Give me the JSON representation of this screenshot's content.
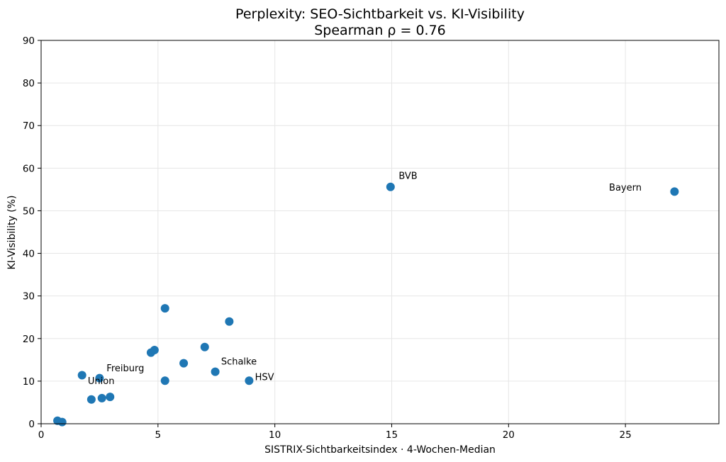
{
  "chart_data": {
    "type": "scatter",
    "title": "Perplexity: SEO-Sichtbarkeit vs. KI-Visibility",
    "subtitle": "Spearman ρ = 0.76",
    "xlabel": "SISTRIX-Sichtbarkeitsindex · 4-Wochen-Median",
    "ylabel": "KI-Visibility (%)",
    "xlim": [
      0,
      29
    ],
    "ylim": [
      0,
      90
    ],
    "xticks": [
      0,
      5,
      10,
      15,
      20,
      25
    ],
    "yticks": [
      0,
      10,
      20,
      30,
      40,
      50,
      60,
      70,
      80,
      90
    ],
    "grid": true,
    "marker_color": "#1f77b4",
    "points": [
      {
        "x": 0.7,
        "y": 0.7
      },
      {
        "x": 0.9,
        "y": 0.4
      },
      {
        "x": 1.75,
        "y": 11.4
      },
      {
        "x": 2.15,
        "y": 5.7
      },
      {
        "x": 2.5,
        "y": 10.7
      },
      {
        "x": 2.6,
        "y": 6.0
      },
      {
        "x": 2.95,
        "y": 6.3
      },
      {
        "x": 4.7,
        "y": 16.7
      },
      {
        "x": 4.85,
        "y": 17.3
      },
      {
        "x": 5.3,
        "y": 27.1
      },
      {
        "x": 5.3,
        "y": 10.1
      },
      {
        "x": 6.1,
        "y": 14.2
      },
      {
        "x": 7.0,
        "y": 18.0
      },
      {
        "x": 7.45,
        "y": 12.2
      },
      {
        "x": 8.05,
        "y": 24.0
      },
      {
        "x": 8.9,
        "y": 10.1
      },
      {
        "x": 14.95,
        "y": 55.6
      },
      {
        "x": 27.1,
        "y": 54.5
      }
    ],
    "annotations": [
      {
        "text": "BVB",
        "x": 15.3,
        "y": 57.5,
        "anchor": "start"
      },
      {
        "text": "Bayern",
        "x": 24.3,
        "y": 54.7,
        "anchor": "start"
      },
      {
        "text": "Schalke",
        "x": 7.7,
        "y": 13.9,
        "anchor": "start"
      },
      {
        "text": "HSV",
        "x": 9.15,
        "y": 10.2,
        "anchor": "start"
      },
      {
        "text": "Freiburg",
        "x": 2.8,
        "y": 12.3,
        "anchor": "start"
      },
      {
        "text": "Union",
        "x": 2.0,
        "y": 9.3,
        "anchor": "start"
      }
    ]
  }
}
